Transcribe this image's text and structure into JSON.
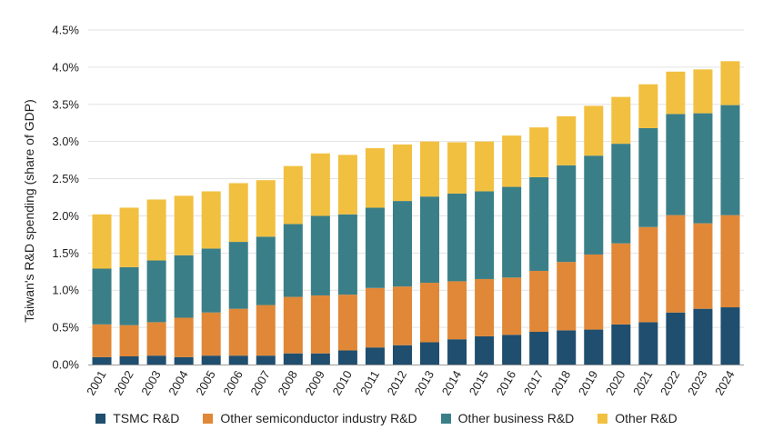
{
  "chart_data": {
    "type": "bar",
    "stacked": true,
    "ylabel": "Taiwan's R&D spending (share of GDP)",
    "xlabel": "",
    "ylim": [
      0,
      4.5
    ],
    "ytick_step": 0.5,
    "ytick_format": "percent_1dp",
    "grid": "horizontal",
    "legend_position": "bottom",
    "categories": [
      "2001",
      "2002",
      "2003",
      "2004",
      "2005",
      "2006",
      "2007",
      "2008",
      "2009",
      "2010",
      "2011",
      "2012",
      "2013",
      "2014",
      "2015",
      "2016",
      "2017",
      "2018",
      "2019",
      "2020",
      "2021",
      "2022",
      "2023",
      "2024"
    ],
    "series": [
      {
        "name": "TSMC R&D",
        "color": "#1f4e6e",
        "values": [
          0.1,
          0.11,
          0.12,
          0.1,
          0.12,
          0.12,
          0.12,
          0.15,
          0.15,
          0.19,
          0.23,
          0.26,
          0.3,
          0.34,
          0.38,
          0.4,
          0.44,
          0.46,
          0.47,
          0.54,
          0.57,
          0.7,
          0.75,
          0.77
        ]
      },
      {
        "name": "Other semiconductor industry R&D",
        "color": "#e08838",
        "values": [
          0.44,
          0.42,
          0.45,
          0.53,
          0.58,
          0.63,
          0.68,
          0.76,
          0.78,
          0.75,
          0.8,
          0.79,
          0.8,
          0.78,
          0.77,
          0.77,
          0.82,
          0.92,
          1.01,
          1.09,
          1.28,
          1.31,
          1.15,
          1.24
        ]
      },
      {
        "name": "Other business R&D",
        "color": "#3a7f88",
        "values": [
          0.75,
          0.78,
          0.83,
          0.84,
          0.86,
          0.9,
          0.92,
          0.98,
          1.07,
          1.08,
          1.08,
          1.15,
          1.16,
          1.18,
          1.18,
          1.22,
          1.26,
          1.3,
          1.33,
          1.34,
          1.33,
          1.36,
          1.48,
          1.48
        ]
      },
      {
        "name": "Other R&D",
        "color": "#f2c040",
        "values": [
          0.73,
          0.8,
          0.82,
          0.8,
          0.77,
          0.79,
          0.76,
          0.78,
          0.84,
          0.8,
          0.8,
          0.76,
          0.74,
          0.69,
          0.67,
          0.69,
          0.67,
          0.66,
          0.67,
          0.63,
          0.59,
          0.57,
          0.59,
          0.59
        ]
      }
    ]
  }
}
